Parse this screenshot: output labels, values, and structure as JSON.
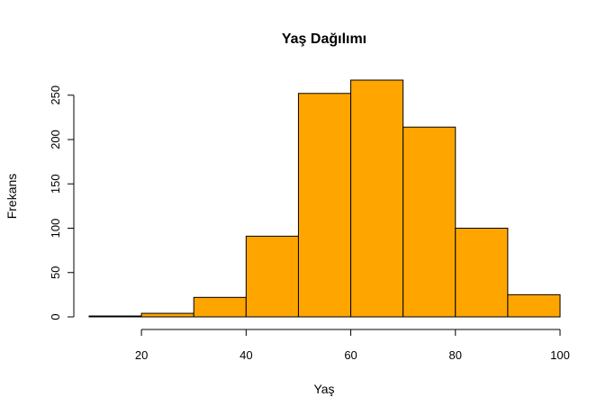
{
  "chart_data": {
    "type": "bar",
    "title": "Yaş Dağılımı",
    "xlabel": "Yaş",
    "ylabel": "Frekans",
    "bins": [
      {
        "from": 10,
        "to": 20,
        "value": 1
      },
      {
        "from": 20,
        "to": 30,
        "value": 4
      },
      {
        "from": 30,
        "to": 40,
        "value": 22
      },
      {
        "from": 40,
        "to": 50,
        "value": 91
      },
      {
        "from": 50,
        "to": 60,
        "value": 252
      },
      {
        "from": 60,
        "to": 70,
        "value": 267
      },
      {
        "from": 70,
        "to": 80,
        "value": 214
      },
      {
        "from": 80,
        "to": 90,
        "value": 100
      },
      {
        "from": 90,
        "to": 100,
        "value": 25
      }
    ],
    "xlim": [
      10,
      100
    ],
    "ylim": [
      0,
      267
    ],
    "x_ticks": [
      "20",
      "40",
      "60",
      "80",
      "100"
    ],
    "y_ticks": [
      "0",
      "50",
      "100",
      "150",
      "200",
      "250"
    ],
    "grid": false,
    "bar_color": "#FFA500",
    "border_color": "#000000"
  }
}
